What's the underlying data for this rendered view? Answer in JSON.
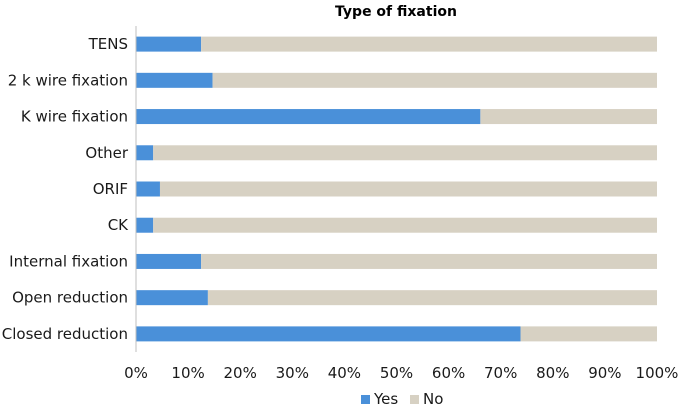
{
  "chart_data": {
    "type": "bar",
    "orientation": "horizontal",
    "stacking": "percent",
    "title": "Type of fixation",
    "xlabel": "",
    "ylabel": "",
    "xlim": [
      0,
      100
    ],
    "x_ticks": [
      "0%",
      "10%",
      "20%",
      "30%",
      "40%",
      "50%",
      "60%",
      "70%",
      "80%",
      "90%",
      "100%"
    ],
    "grid": false,
    "legend_position": "bottom-center",
    "categories": [
      "TENS",
      "2 k wire fixation",
      "K wire fixation",
      "Other",
      "ORIF",
      "CK",
      "Internal fixation",
      "Open reduction",
      "Closed reduction"
    ],
    "series": [
      {
        "name": "Yes",
        "color": "#4a90d9",
        "values": [
          12.5,
          14.7,
          66.1,
          3.3,
          4.6,
          3.3,
          12.5,
          13.8,
          73.8
        ]
      },
      {
        "name": "No",
        "color": "#d7d1c3",
        "values": [
          87.5,
          85.3,
          33.9,
          96.7,
          95.4,
          96.7,
          87.5,
          86.2,
          26.2
        ]
      }
    ]
  }
}
